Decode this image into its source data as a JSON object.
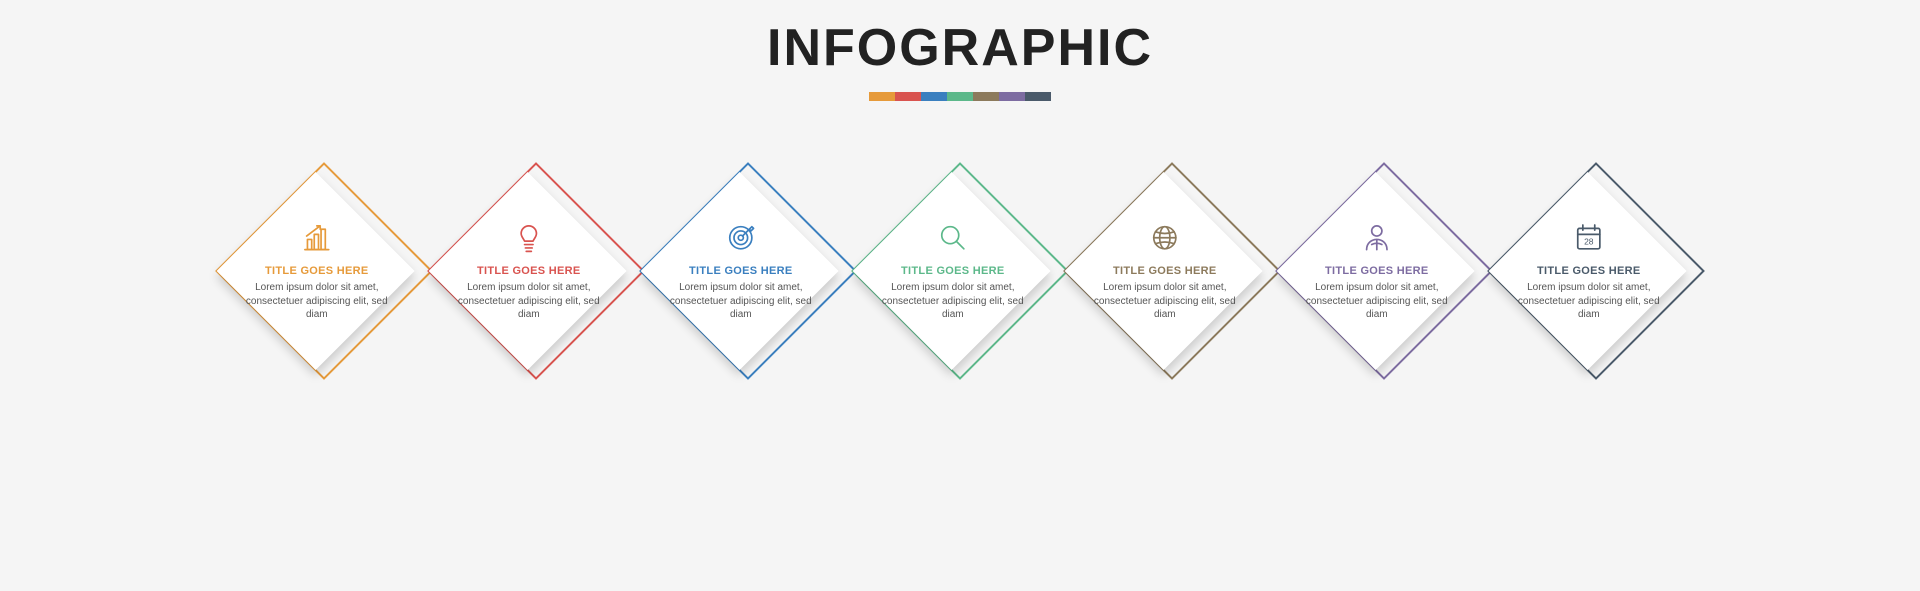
{
  "type": "infographic",
  "layout": "horizontal-row-diamonds",
  "background_color": "#f5f5f5",
  "title": {
    "text": "INFOGRAPHIC",
    "fontsize": 52,
    "font_weight": 900,
    "color": "#222222"
  },
  "color_bar": {
    "segment_width": 26,
    "segment_height": 9,
    "colors": [
      "#e69a3a",
      "#d9534f",
      "#3a7fbf",
      "#5cb88a",
      "#8c7a5c",
      "#7d6ca1",
      "#4a5a6a"
    ]
  },
  "card_style": {
    "diamond_back_size": 154,
    "diamond_front_size": 140,
    "front_bg": "#ffffff",
    "border_width": 2,
    "shadow": "4px 4px 10px rgba(0,0,0,0.18)",
    "icon_size": 34,
    "title_fontsize": 11,
    "body_fontsize": 10,
    "body_color": "#555555",
    "gap": 58
  },
  "cards": [
    {
      "accent": "#e69a3a",
      "icon": "bar-chart-icon",
      "title": "TITLE GOES HERE",
      "body": "Lorem ipsum dolor sit amet, consectetuer adipiscing elit, sed diam"
    },
    {
      "accent": "#d9534f",
      "icon": "lightbulb-icon",
      "title": "TITLE GOES HERE",
      "body": "Lorem ipsum dolor sit amet, consectetuer adipiscing elit, sed diam"
    },
    {
      "accent": "#3a7fbf",
      "icon": "target-icon",
      "title": "TITLE GOES HERE",
      "body": "Lorem ipsum dolor sit amet, consectetuer adipiscing elit, sed diam"
    },
    {
      "accent": "#5cb88a",
      "icon": "magnifier-icon",
      "title": "TITLE GOES HERE",
      "body": "Lorem ipsum dolor sit amet, consectetuer adipiscing elit, sed diam"
    },
    {
      "accent": "#8c7a5c",
      "icon": "globe-icon",
      "title": "TITLE GOES HERE",
      "body": "Lorem ipsum dolor sit amet, consectetuer adipiscing elit, sed diam"
    },
    {
      "accent": "#7d6ca1",
      "icon": "person-icon",
      "title": "TITLE GOES HERE",
      "body": "Lorem ipsum dolor sit amet, consectetuer adipiscing elit, sed diam"
    },
    {
      "accent": "#4a5a6a",
      "icon": "calendar-icon",
      "title": "TITLE GOES HERE",
      "body": "Lorem ipsum dolor sit amet, consectetuer adipiscing elit, sed diam",
      "calendar_day": "28"
    }
  ]
}
